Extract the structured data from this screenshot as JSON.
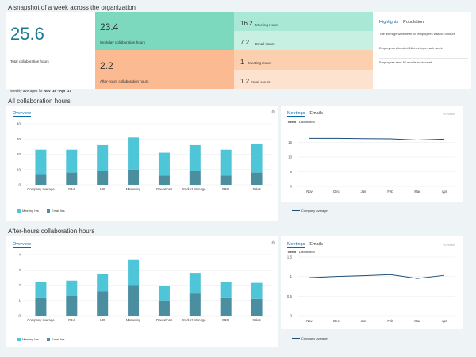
{
  "page_title": "A snapshot of a week across the organization",
  "summary": {
    "total_value": "25.6",
    "total_label": "Total collaboration hours",
    "weekly_prefix": "Weekly averages for ",
    "weekly_range": "Nov '16 - Apr '17",
    "workday_value": "23.4",
    "workday_label": "Workday collaboration hours",
    "afterhours_value": "2.2",
    "afterhours_label": "After-hours collaboration hours",
    "workday_meeting_value": "16.2",
    "workday_meeting_label": "Meeting Hours",
    "workday_email_value": "7.2",
    "workday_email_label": "Email Hours",
    "after_meeting_value": "1",
    "after_meeting_label": "Meeting Hours",
    "after_email_value": "1.2",
    "after_email_label": "Email Hours",
    "colors": {
      "workday_tile": "#7dd9bd",
      "workday_sub": "#a9e8d4",
      "after_tile": "#fbba91",
      "after_sub": "#fcd4b5",
      "accent": "#1a7a94"
    }
  },
  "highlights": {
    "tabs": [
      "Highlights",
      "Population"
    ],
    "items": [
      "The average workweek for employees was 40.5 hours",
      "Employees attended 16 meetings each week",
      "Employees sent 50 emails each week"
    ]
  },
  "section1": {
    "title": "All collaboration hours",
    "overview_label": "Overview",
    "tabs": [
      "Meetings",
      "Emails"
    ],
    "subtabs": [
      "Trend",
      "Distribution"
    ],
    "reset_label": "Reset",
    "trend_legend": "Company average",
    "bar_legend": [
      "Meeting hrs",
      "Email hrs"
    ]
  },
  "section2": {
    "title": "After-hours collaboration hours",
    "overview_label": "Overview",
    "tabs": [
      "Meetings",
      "Emails"
    ],
    "subtabs": [
      "Trend",
      "Distribution"
    ],
    "reset_label": "Reset",
    "trend_legend": "Company average",
    "bar_legend": [
      "Meeting hrs",
      "Email hrs"
    ]
  },
  "chart_data": [
    {
      "type": "bar",
      "stacked": true,
      "categories": [
        "Company average",
        "G&A",
        "HR",
        "Marketing",
        "Operations",
        "Product Manage...",
        "R&D",
        "Sales"
      ],
      "series": [
        {
          "name": "Email hrs",
          "values": [
            7,
            8,
            9,
            10,
            6,
            9,
            6,
            8
          ],
          "color": "#4a8ea0"
        },
        {
          "name": "Meeting hrs",
          "values": [
            16,
            15,
            17,
            21,
            15,
            17,
            17,
            19
          ],
          "color": "#4fc5d8"
        }
      ],
      "ylim": [
        0,
        40
      ],
      "yticks": [
        0,
        10,
        20,
        30,
        40
      ]
    },
    {
      "type": "line",
      "x": [
        "Nov",
        "Dec",
        "Jan",
        "Feb",
        "Mar",
        "Apr"
      ],
      "series": [
        {
          "name": "Company average",
          "values": [
            16.4,
            16.4,
            16.3,
            16.2,
            15.8,
            16.1
          ]
        }
      ],
      "ylim": [
        0,
        20
      ],
      "yticks": [
        0,
        5,
        10,
        15
      ]
    },
    {
      "type": "bar",
      "stacked": true,
      "categories": [
        "Company average",
        "G&A",
        "HR",
        "Marketing",
        "Operations",
        "Product Manage...",
        "R&D",
        "Sales"
      ],
      "series": [
        {
          "name": "Email hrs",
          "values": [
            1.2,
            1.3,
            1.6,
            2.0,
            1.0,
            1.5,
            1.2,
            1.1
          ],
          "color": "#4a8ea0"
        },
        {
          "name": "Meeting hrs",
          "values": [
            1.0,
            1.0,
            1.15,
            1.65,
            0.95,
            1.3,
            1.0,
            1.05
          ],
          "color": "#4fc5d8"
        }
      ],
      "ylim": [
        0,
        4
      ],
      "yticks": [
        0,
        1,
        2,
        3,
        4
      ]
    },
    {
      "type": "line",
      "x": [
        "Nov",
        "Dec",
        "Jan",
        "Feb",
        "Mar",
        "Apr"
      ],
      "series": [
        {
          "name": "Company average",
          "values": [
            0.97,
            1.0,
            1.02,
            1.05,
            0.95,
            1.03
          ]
        }
      ],
      "ylim": [
        0,
        1.5
      ],
      "yticks": [
        0,
        0.5,
        1,
        1.5
      ]
    }
  ]
}
